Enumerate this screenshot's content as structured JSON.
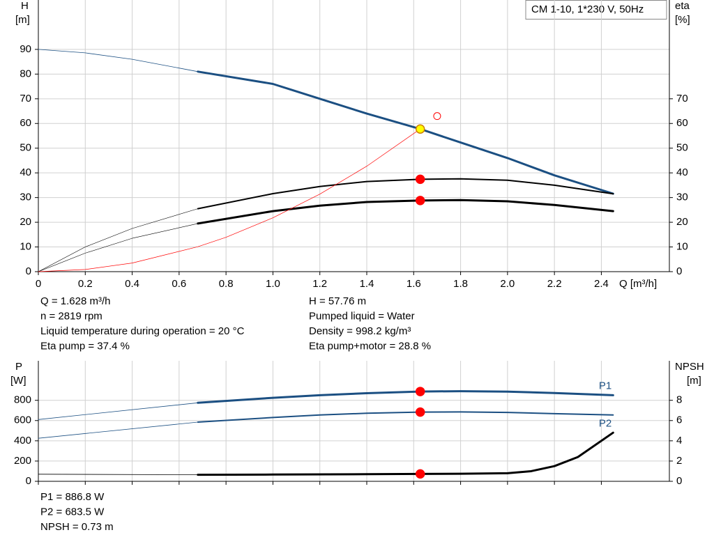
{
  "chart_data": [
    {
      "type": "line",
      "title": "CM 1-10, 1*230 V, 50Hz",
      "ylabel": "H",
      "yunit": "[m]",
      "y2label": "eta",
      "y2unit": "[%]",
      "xlabel": "Q [m³/h]",
      "xlim": [
        0,
        2.69
      ],
      "xticks": [
        0,
        0.2,
        0.4,
        0.6,
        0.8,
        {
          "value": 1,
          "label": "1.0"
        },
        1.2,
        1.4,
        1.6,
        1.8,
        {
          "value": 2,
          "label": "2.0"
        },
        2.2,
        2.4
      ],
      "ylim": [
        0,
        110
      ],
      "yticks": [
        0,
        10,
        20,
        30,
        40,
        50,
        60,
        70,
        80,
        90
      ],
      "y2lim": [
        0,
        110
      ],
      "y2ticks": [
        0,
        10,
        20,
        30,
        40,
        50,
        60,
        70
      ],
      "grid": true,
      "series": [
        {
          "color": "#1b4f82",
          "width": [
            0.8,
            3
          ],
          "thick_from": 0.68,
          "x": [
            0,
            0.2,
            0.4,
            0.68,
            1.0,
            1.2,
            1.4,
            1.628,
            1.8,
            2.0,
            2.2,
            2.45
          ],
          "values": [
            90,
            88.6,
            86,
            81,
            76,
            70,
            64,
            57.76,
            52.3,
            46,
            39,
            31.6
          ]
        },
        {
          "color": "#000000",
          "axis": "y2",
          "width": [
            0.6,
            2
          ],
          "thick_from": 0.68,
          "x": [
            0,
            0.2,
            0.4,
            0.68,
            1.0,
            1.2,
            1.4,
            1.628,
            1.8,
            2.0,
            2.2,
            2.45
          ],
          "values": [
            0,
            10,
            17.5,
            25.5,
            31.6,
            34.5,
            36.5,
            37.4,
            37.6,
            37,
            35,
            31.5
          ]
        },
        {
          "color": "#000000",
          "axis": "y2",
          "width": [
            0.6,
            3
          ],
          "thick_from": 0.68,
          "x": [
            0,
            0.2,
            0.4,
            0.68,
            1.0,
            1.2,
            1.4,
            1.628,
            1.8,
            2.0,
            2.2,
            2.45
          ],
          "values": [
            0,
            7.5,
            13.5,
            19.5,
            24.5,
            26.7,
            28.2,
            28.8,
            29,
            28.5,
            27,
            24.5
          ]
        },
        {
          "color": "#ff0000",
          "width": [
            0.7,
            0.7
          ],
          "x": [
            0,
            0.2,
            0.4,
            0.68,
            0.8,
            1.0,
            1.2,
            1.4,
            1.628
          ],
          "values": [
            0,
            0.87,
            3.5,
            10.1,
            13.9,
            21.8,
            31.4,
            42.7,
            57.76
          ]
        }
      ],
      "points": [
        {
          "x": 1.628,
          "y": 57.76,
          "fill": "#ffff00",
          "stroke": "#d08000"
        },
        {
          "x": 1.628,
          "y": 37.4,
          "axis": "y2",
          "fill": "#ff0000",
          "stroke": "#ff0000"
        },
        {
          "x": 1.628,
          "y": 28.8,
          "axis": "y2",
          "fill": "#ff0000",
          "stroke": "#ff0000"
        },
        {
          "x": 1.7,
          "y": 63,
          "fill": "none",
          "stroke": "#ff0000"
        }
      ],
      "info": [
        [
          "Q = 1.628 m³/h",
          "n = 2819 rpm",
          "Liquid temperature during operation = 20 °C",
          "Eta pump = 37.4 %"
        ],
        [
          "H = 57.76 m",
          "Pumped liquid = Water",
          "Density = 998.2 kg/m³",
          "Eta pump+motor = 28.8 %"
        ]
      ]
    },
    {
      "type": "line",
      "ylabel": "P",
      "yunit": "[W]",
      "y2label": "NPSH",
      "y2unit": "[m]",
      "xlim": [
        0,
        2.69
      ],
      "xtick_labels": false,
      "xticks": [
        0,
        0.2,
        0.4,
        0.6,
        0.8,
        1,
        1.2,
        1.4,
        1.6,
        1.8,
        2,
        2.2,
        2.4
      ],
      "ylim": [
        0,
        1190
      ],
      "yticks": [
        0,
        200,
        400,
        600,
        800
      ],
      "y2lim": [
        0,
        11.9
      ],
      "y2ticks": [
        0,
        2,
        4,
        6,
        8
      ],
      "grid": true,
      "series": [
        {
          "name": "P1",
          "label_pos": "above",
          "color": "#1b4f82",
          "width": [
            0.8,
            3
          ],
          "thick_from": 0.68,
          "x": [
            0,
            0.68,
            1.0,
            1.2,
            1.4,
            1.628,
            1.8,
            2.0,
            2.2,
            2.45
          ],
          "values": [
            610,
            775,
            825,
            850,
            870,
            886.8,
            890,
            886,
            872,
            850
          ]
        },
        {
          "name": "P2",
          "label_pos": "below",
          "color": "#1b4f82",
          "width": [
            0.8,
            2
          ],
          "thick_from": 0.68,
          "x": [
            0,
            0.68,
            1.0,
            1.2,
            1.4,
            1.628,
            1.8,
            2.0,
            2.2,
            2.45
          ],
          "values": [
            425,
            585,
            630,
            655,
            672,
            683.5,
            685,
            680,
            668,
            655
          ]
        },
        {
          "color": "#000000",
          "axis": "y2",
          "width": [
            0.8,
            3
          ],
          "thick_from": 0.68,
          "x": [
            0,
            0.68,
            1.0,
            1.4,
            1.628,
            1.8,
            2.0,
            2.1,
            2.2,
            2.3,
            2.45
          ],
          "values": [
            0.7,
            0.65,
            0.67,
            0.7,
            0.73,
            0.75,
            0.8,
            1.0,
            1.5,
            2.4,
            4.8
          ]
        }
      ],
      "points": [
        {
          "x": 1.628,
          "y": 886.8,
          "fill": "#ff0000",
          "stroke": "#ff0000"
        },
        {
          "x": 1.628,
          "y": 683.5,
          "fill": "#ff0000",
          "stroke": "#ff0000"
        },
        {
          "x": 1.628,
          "y": 0.73,
          "axis": "y2",
          "fill": "#ff0000",
          "stroke": "#ff0000"
        }
      ],
      "info": [
        [
          "P1 = 886.8 W",
          "P2 = 683.5 W",
          "NPSH = 0.73 m"
        ]
      ]
    }
  ]
}
